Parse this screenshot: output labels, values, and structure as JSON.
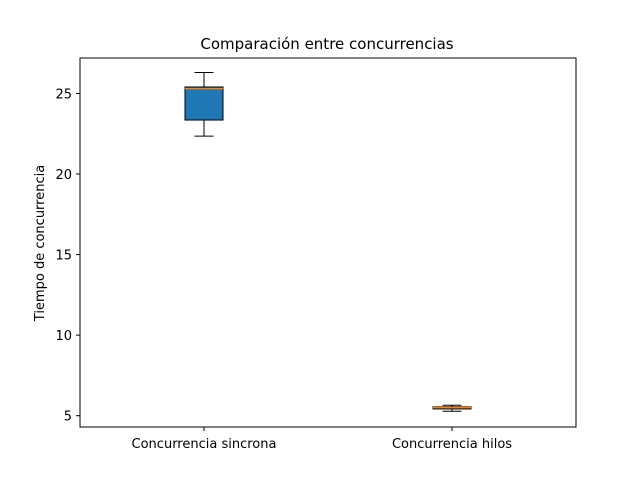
{
  "chart_data": {
    "type": "box",
    "title": "Comparación entre concurrencias",
    "xlabel": "",
    "ylabel": "Tiempo de concurrencia",
    "ylim": [
      4.3,
      27.2
    ],
    "yticks": [
      5,
      10,
      15,
      20,
      25
    ],
    "grid": false,
    "categories": [
      "Concurrencia sincrona",
      "Concurrencia hilos"
    ],
    "boxes": [
      {
        "category": "Concurrencia sincrona",
        "whisker_low": 22.35,
        "q1": 23.35,
        "median": 25.3,
        "q3": 25.4,
        "whisker_high": 26.3,
        "fill": "#1f77b4",
        "median_color": "#ff7f0e"
      },
      {
        "category": "Concurrencia hilos",
        "whisker_low": 5.28,
        "q1": 5.42,
        "median": 5.5,
        "q3": 5.55,
        "whisker_high": 5.65,
        "fill": "#1f77b4",
        "median_color": "#ff7f0e"
      }
    ]
  }
}
